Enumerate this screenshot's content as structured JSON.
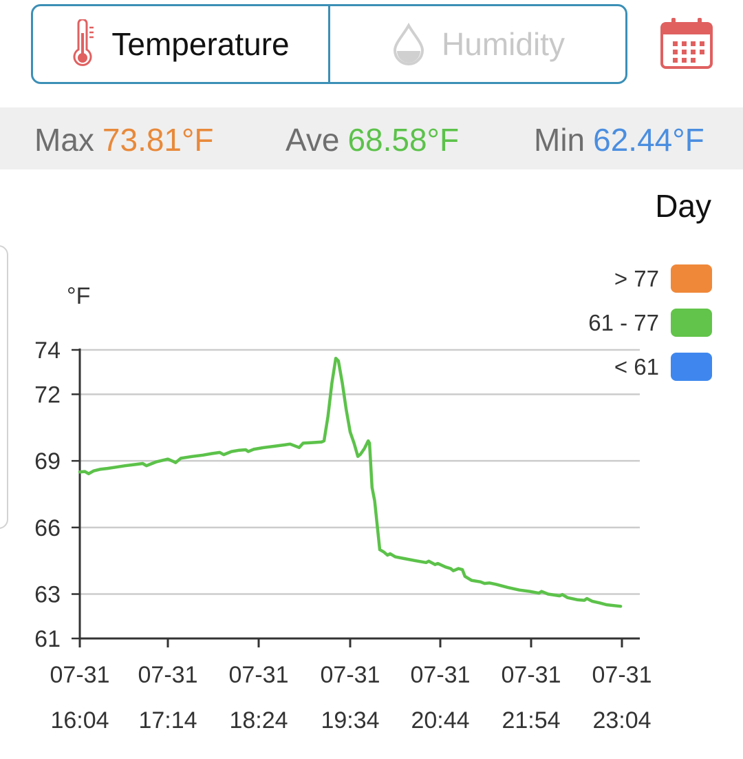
{
  "tabs": [
    {
      "label": "Temperature",
      "icon": "thermometer-icon",
      "active": true
    },
    {
      "label": "Humidity",
      "icon": "droplet-icon",
      "active": false
    }
  ],
  "calendar_icon": "calendar-icon",
  "stats": {
    "max_label": "Max",
    "max_value": "73.81°F",
    "max_color": "#e8893a",
    "ave_label": "Ave",
    "ave_value": "68.58°F",
    "ave_color": "#5cc24a",
    "min_label": "Min",
    "min_value": "62.44°F",
    "min_color": "#4a8ee0"
  },
  "range_label": "Day",
  "colors": {
    "tab_border": "#3b8fb6",
    "thermometer": "#e06060",
    "calendar": "#e06060",
    "line": "#5cc24a",
    "grid": "#cccccc"
  },
  "chart_data": {
    "type": "line",
    "ylabel": "°F",
    "ylim": [
      61,
      74
    ],
    "yticks": [
      74,
      72,
      69,
      66,
      63,
      61
    ],
    "grid": true,
    "xlim": [
      "2024-07-31 16:04",
      "2024-07-31 23:04"
    ],
    "xticks": [
      {
        "date": "07-31",
        "time": "16:04"
      },
      {
        "date": "07-31",
        "time": "17:14"
      },
      {
        "date": "07-31",
        "time": "18:24"
      },
      {
        "date": "07-31",
        "time": "19:34"
      },
      {
        "date": "07-31",
        "time": "20:44"
      },
      {
        "date": "07-31",
        "time": "21:54"
      },
      {
        "date": "07-31",
        "time": "23:04"
      }
    ],
    "legend": {
      "position": "top-right",
      "entries": [
        {
          "label": "> 77",
          "color": "#f0883a"
        },
        {
          "label": "61 - 77",
          "color": "#62c44a"
        },
        {
          "label": "< 61",
          "color": "#3f87ee"
        }
      ]
    },
    "series": [
      {
        "color": "#5cc24a",
        "points": [
          [
            "16:04",
            68.5
          ],
          [
            "16:08",
            68.52
          ],
          [
            "16:11",
            68.42
          ],
          [
            "16:15",
            68.55
          ],
          [
            "16:20",
            68.62
          ],
          [
            "16:26",
            68.66
          ],
          [
            "16:33",
            68.72
          ],
          [
            "16:40",
            68.78
          ],
          [
            "16:47",
            68.83
          ],
          [
            "16:54",
            68.88
          ],
          [
            "16:57",
            68.78
          ],
          [
            "17:00",
            68.85
          ],
          [
            "17:05",
            68.96
          ],
          [
            "17:14",
            69.08
          ],
          [
            "17:18",
            68.98
          ],
          [
            "17:20",
            68.92
          ],
          [
            "17:24",
            69.12
          ],
          [
            "17:33",
            69.2
          ],
          [
            "17:41",
            69.26
          ],
          [
            "17:48",
            69.33
          ],
          [
            "17:54",
            69.38
          ],
          [
            "17:57",
            69.28
          ],
          [
            "18:03",
            69.42
          ],
          [
            "18:09",
            69.48
          ],
          [
            "18:14",
            69.5
          ],
          [
            "18:16",
            69.42
          ],
          [
            "18:20",
            69.52
          ],
          [
            "18:28",
            69.6
          ],
          [
            "18:36",
            69.66
          ],
          [
            "18:44",
            69.72
          ],
          [
            "18:48",
            69.76
          ],
          [
            "18:55",
            69.6
          ],
          [
            "18:58",
            69.8
          ],
          [
            "19:04",
            69.82
          ],
          [
            "19:12",
            69.85
          ],
          [
            "19:14",
            69.9
          ],
          [
            "19:17",
            71.0
          ],
          [
            "19:20",
            72.5
          ],
          [
            "19:23",
            73.62
          ],
          [
            "19:25",
            73.5
          ],
          [
            "19:28",
            72.5
          ],
          [
            "19:31",
            71.3
          ],
          [
            "19:34",
            70.3
          ],
          [
            "19:37",
            69.8
          ],
          [
            "19:40",
            69.2
          ],
          [
            "19:42",
            69.3
          ],
          [
            "19:45",
            69.55
          ],
          [
            "19:48",
            69.9
          ],
          [
            "19:49",
            69.8
          ],
          [
            "19:51",
            67.8
          ],
          [
            "19:53",
            67.2
          ],
          [
            "19:55",
            66.1
          ],
          [
            "19:57",
            65.0
          ],
          [
            "20:00",
            64.9
          ],
          [
            "20:03",
            64.75
          ],
          [
            "20:05",
            64.82
          ],
          [
            "20:09",
            64.68
          ],
          [
            "20:16",
            64.6
          ],
          [
            "20:25",
            64.5
          ],
          [
            "20:33",
            64.42
          ],
          [
            "20:35",
            64.48
          ],
          [
            "20:40",
            64.33
          ],
          [
            "20:42",
            64.38
          ],
          [
            "20:48",
            64.22
          ],
          [
            "20:52",
            64.15
          ],
          [
            "20:54",
            64.05
          ],
          [
            "20:58",
            64.15
          ],
          [
            "21:01",
            64.1
          ],
          [
            "21:03",
            63.8
          ],
          [
            "21:08",
            63.62
          ],
          [
            "21:15",
            63.55
          ],
          [
            "21:18",
            63.48
          ],
          [
            "21:22",
            63.5
          ],
          [
            "21:27",
            63.44
          ],
          [
            "21:36",
            63.3
          ],
          [
            "21:45",
            63.18
          ],
          [
            "21:53",
            63.12
          ],
          [
            "22:00",
            63.04
          ],
          [
            "22:02",
            63.12
          ],
          [
            "22:07",
            63.0
          ],
          [
            "22:16",
            62.92
          ],
          [
            "22:18",
            62.98
          ],
          [
            "22:22",
            62.84
          ],
          [
            "22:30",
            62.74
          ],
          [
            "22:35",
            62.72
          ],
          [
            "22:37",
            62.8
          ],
          [
            "22:41",
            62.68
          ],
          [
            "22:47",
            62.6
          ],
          [
            "22:52",
            62.52
          ],
          [
            "23:03",
            62.45
          ]
        ]
      }
    ]
  }
}
